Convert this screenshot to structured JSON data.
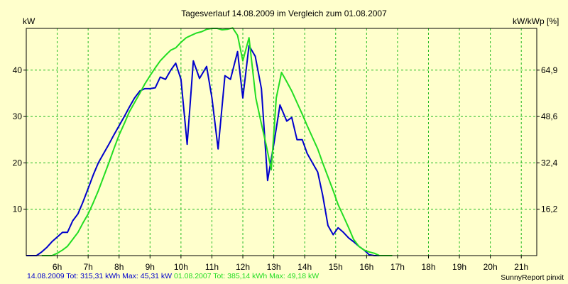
{
  "chart_data": {
    "type": "line",
    "title": "Tagesverlauf 14.08.2009 im Vergleich zum 01.08.2007",
    "ylabel_left": "kW",
    "ylabel_right": "kW/kWp [%]",
    "xlim": [
      5.0,
      21.5
    ],
    "ylim_left": [
      0,
      49
    ],
    "x_ticks": [
      {
        "x": 6,
        "label": "6h"
      },
      {
        "x": 7,
        "label": "7h"
      },
      {
        "x": 8,
        "label": "8h"
      },
      {
        "x": 9,
        "label": "9h"
      },
      {
        "x": 10,
        "label": "10h"
      },
      {
        "x": 11,
        "label": "11h"
      },
      {
        "x": 12,
        "label": "12h"
      },
      {
        "x": 13,
        "label": "13h"
      },
      {
        "x": 14,
        "label": "14h"
      },
      {
        "x": 15,
        "label": "15h"
      },
      {
        "x": 16,
        "label": "16h"
      },
      {
        "x": 17,
        "label": "17h"
      },
      {
        "x": 18,
        "label": "18h"
      },
      {
        "x": 19,
        "label": "19h"
      },
      {
        "x": 20,
        "label": "20h"
      },
      {
        "x": 21,
        "label": "21h"
      }
    ],
    "y_ticks_left": [
      10,
      20,
      30,
      40
    ],
    "y_ticks_right": [
      {
        "y": 10,
        "label": "16,2"
      },
      {
        "y": 20,
        "label": "32,4"
      },
      {
        "y": 30,
        "label": "48,6"
      },
      {
        "y": 40,
        "label": "64,9"
      }
    ],
    "grid": true,
    "series": [
      {
        "name": "14.08.2009",
        "color": "#0000cc",
        "points": [
          [
            5.0,
            0
          ],
          [
            5.33,
            0
          ],
          [
            5.5,
            0.8
          ],
          [
            5.67,
            1.8
          ],
          [
            5.83,
            3
          ],
          [
            6.0,
            4
          ],
          [
            6.17,
            5
          ],
          [
            6.33,
            5
          ],
          [
            6.5,
            7.5
          ],
          [
            6.67,
            9
          ],
          [
            6.83,
            11.5
          ],
          [
            7.0,
            14.5
          ],
          [
            7.17,
            17.5
          ],
          [
            7.33,
            20
          ],
          [
            7.5,
            22
          ],
          [
            7.67,
            24
          ],
          [
            7.83,
            26
          ],
          [
            8.0,
            28
          ],
          [
            8.17,
            30
          ],
          [
            8.33,
            32
          ],
          [
            8.5,
            34
          ],
          [
            8.67,
            35.5
          ],
          [
            8.83,
            36
          ],
          [
            9.0,
            36
          ],
          [
            9.17,
            36.2
          ],
          [
            9.33,
            38.5
          ],
          [
            9.5,
            38
          ],
          [
            9.67,
            40
          ],
          [
            9.83,
            41.5
          ],
          [
            10.0,
            38
          ],
          [
            10.2,
            24
          ],
          [
            10.4,
            42
          ],
          [
            10.6,
            38.2
          ],
          [
            10.83,
            40.8
          ],
          [
            11.0,
            34
          ],
          [
            11.2,
            23
          ],
          [
            11.42,
            38.8
          ],
          [
            11.6,
            38
          ],
          [
            11.83,
            44
          ],
          [
            12.0,
            34
          ],
          [
            12.2,
            45.3
          ],
          [
            12.4,
            43
          ],
          [
            12.6,
            36
          ],
          [
            12.8,
            16.2
          ],
          [
            13.0,
            24
          ],
          [
            13.2,
            32.5
          ],
          [
            13.42,
            29
          ],
          [
            13.58,
            29.8
          ],
          [
            13.75,
            25
          ],
          [
            13.92,
            25
          ],
          [
            14.08,
            22
          ],
          [
            14.25,
            20
          ],
          [
            14.42,
            18
          ],
          [
            14.58,
            13
          ],
          [
            14.75,
            6.5
          ],
          [
            14.92,
            4.5
          ],
          [
            15.08,
            6
          ],
          [
            15.25,
            5
          ],
          [
            15.42,
            3.8
          ],
          [
            15.58,
            3
          ],
          [
            15.75,
            2
          ],
          [
            15.92,
            1.2
          ],
          [
            16.08,
            0.2
          ],
          [
            16.25,
            0
          ],
          [
            16.5,
            0
          ]
        ]
      },
      {
        "name": "01.08.2007",
        "color": "#22dd22",
        "points": [
          [
            5.5,
            0
          ],
          [
            5.83,
            0
          ],
          [
            6.0,
            0.5
          ],
          [
            6.17,
            1.2
          ],
          [
            6.33,
            2
          ],
          [
            6.5,
            3.5
          ],
          [
            6.67,
            5
          ],
          [
            6.83,
            7
          ],
          [
            7.0,
            9
          ],
          [
            7.17,
            11.5
          ],
          [
            7.33,
            14
          ],
          [
            7.5,
            17
          ],
          [
            7.67,
            20
          ],
          [
            7.83,
            23
          ],
          [
            8.0,
            26
          ],
          [
            8.17,
            28.5
          ],
          [
            8.33,
            31
          ],
          [
            8.5,
            33
          ],
          [
            8.67,
            35
          ],
          [
            8.83,
            37
          ],
          [
            9.0,
            38.8
          ],
          [
            9.17,
            40.5
          ],
          [
            9.33,
            42
          ],
          [
            9.5,
            43.2
          ],
          [
            9.67,
            44.3
          ],
          [
            9.83,
            44.8
          ],
          [
            10.0,
            46
          ],
          [
            10.17,
            47
          ],
          [
            10.33,
            47.5
          ],
          [
            10.5,
            48
          ],
          [
            10.67,
            48.3
          ],
          [
            10.83,
            48.8
          ],
          [
            11.0,
            49
          ],
          [
            11.17,
            49
          ],
          [
            11.33,
            48.7
          ],
          [
            11.5,
            48.8
          ],
          [
            11.67,
            49.1
          ],
          [
            11.83,
            47.5
          ],
          [
            12.0,
            42
          ],
          [
            12.2,
            47
          ],
          [
            12.42,
            34
          ],
          [
            12.58,
            29
          ],
          [
            12.75,
            24
          ],
          [
            12.92,
            18.5
          ],
          [
            13.08,
            34
          ],
          [
            13.25,
            39.5
          ],
          [
            13.42,
            37.5
          ],
          [
            13.58,
            35.5
          ],
          [
            13.75,
            33
          ],
          [
            13.92,
            30.5
          ],
          [
            14.08,
            28
          ],
          [
            14.25,
            25.5
          ],
          [
            14.42,
            23
          ],
          [
            14.58,
            20
          ],
          [
            14.75,
            17
          ],
          [
            14.92,
            14
          ],
          [
            15.08,
            11
          ],
          [
            15.25,
            8.5
          ],
          [
            15.42,
            6
          ],
          [
            15.58,
            3.5
          ],
          [
            15.75,
            2
          ],
          [
            15.92,
            1.2
          ],
          [
            16.08,
            0.8
          ],
          [
            16.25,
            0.5
          ],
          [
            16.42,
            0
          ],
          [
            16.6,
            0
          ],
          [
            16.83,
            0
          ]
        ]
      }
    ]
  },
  "legend": {
    "series1_text": "14.08.2009 Tot: 315,31 kWh Max: 45,31 kW",
    "series1_color": "#0000cc",
    "series2_text": "01.08.2007 Tot: 385,14 kWh Max: 49,18 kW",
    "series2_color": "#22dd22"
  },
  "credit": "SunnyReport pinxit"
}
